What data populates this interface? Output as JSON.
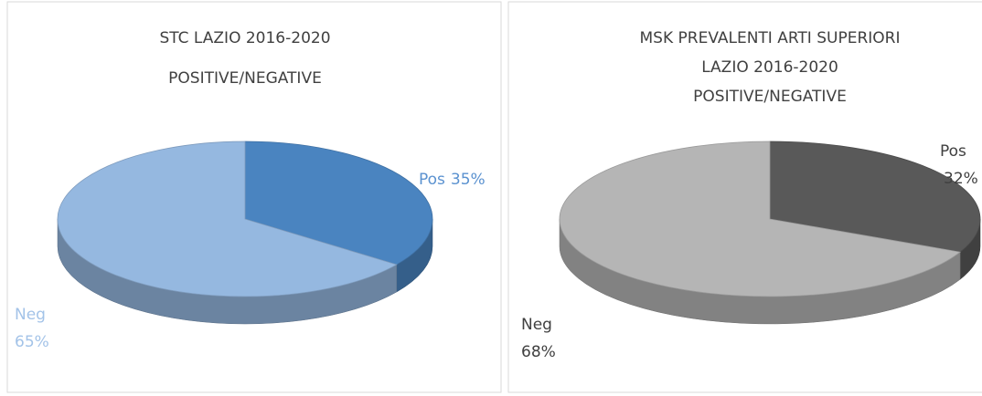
{
  "chart_data": [
    {
      "type": "pie",
      "title": [
        "STC LAZIO 2016-2020"
      ],
      "subtitle": "POSITIVE/NEGATIVE",
      "categories": [
        "Pos",
        "Neg"
      ],
      "values": [
        35,
        65
      ],
      "value_labels": [
        "35%",
        "65%"
      ],
      "colors": [
        "#4a84c0",
        "#95b8e0"
      ]
    },
    {
      "type": "pie",
      "title": [
        "MSK PREVALENTI ARTI SUPERIORI",
        "LAZIO 2016-2020"
      ],
      "subtitle": "POSITIVE/NEGATIVE",
      "categories": [
        "Pos",
        "Neg"
      ],
      "values": [
        32,
        68
      ],
      "value_labels": [
        "32%",
        "68%"
      ],
      "colors": [
        "#595959",
        "#b5b5b5"
      ]
    }
  ]
}
